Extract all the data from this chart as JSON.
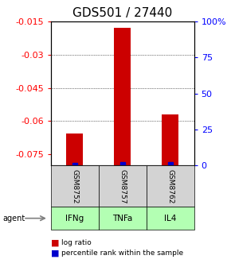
{
  "title": "GDS501 / 27440",
  "samples": [
    "GSM8752",
    "GSM8757",
    "GSM8762"
  ],
  "agents": [
    "IFNg",
    "TNFa",
    "IL4"
  ],
  "log_ratios": [
    -0.0655,
    -0.018,
    -0.057
  ],
  "percentile_ranks": [
    0.42,
    0.68,
    0.5
  ],
  "ylim_left": [
    -0.08,
    -0.015
  ],
  "ylim_right": [
    0,
    100
  ],
  "yticks_left": [
    -0.075,
    -0.06,
    -0.045,
    -0.03,
    -0.015
  ],
  "yticks_right": [
    0,
    25,
    50,
    75,
    100
  ],
  "ytick_labels_left": [
    "-0.075",
    "-0.06",
    "-0.045",
    "-0.03",
    "-0.015"
  ],
  "ytick_labels_right": [
    "0",
    "25",
    "50",
    "75",
    "100%"
  ],
  "gridlines": [
    -0.03,
    -0.045,
    -0.06
  ],
  "bar_color": "#cc0000",
  "dot_color": "#0000cc",
  "sample_bg": "#d3d3d3",
  "agent_bg": "#b3ffb3",
  "legend_items": [
    "log ratio",
    "percentile rank within the sample"
  ],
  "title_fontsize": 11,
  "tick_fontsize": 8
}
